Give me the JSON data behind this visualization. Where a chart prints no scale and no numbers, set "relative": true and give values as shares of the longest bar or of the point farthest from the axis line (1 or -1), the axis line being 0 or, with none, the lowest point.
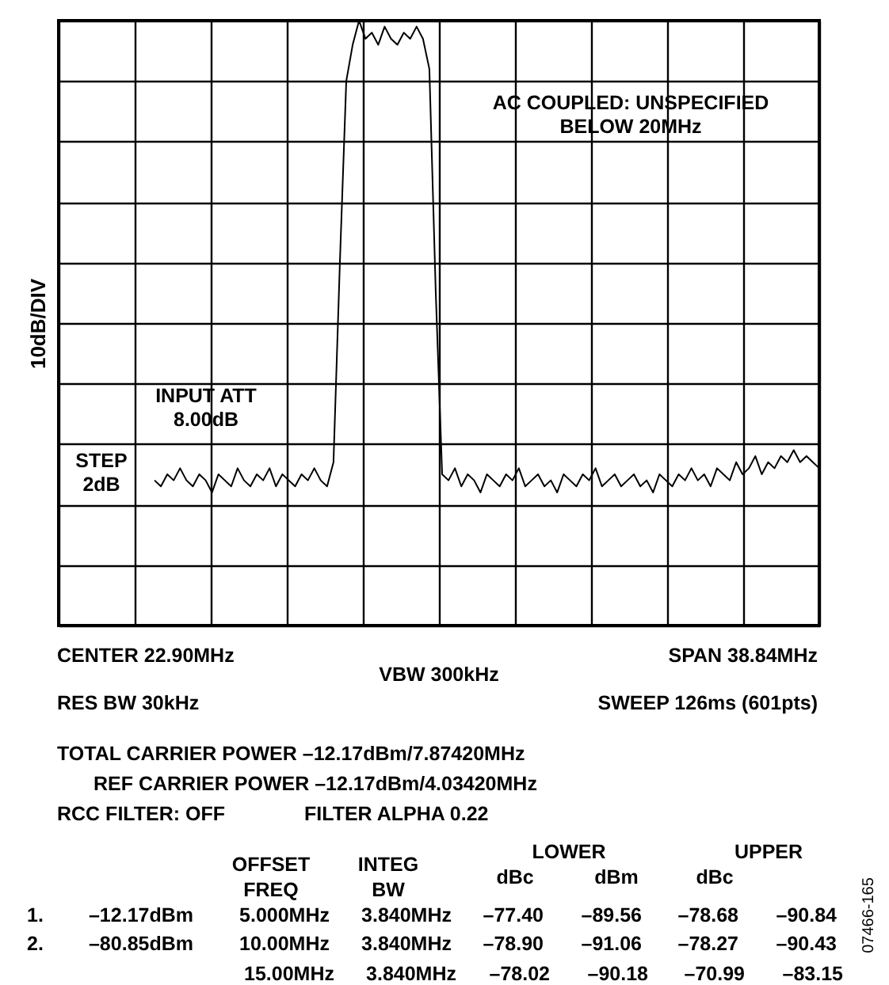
{
  "chart_data": {
    "type": "line",
    "relative": true,
    "ylabel": "10dB/DIV",
    "grid": true,
    "line_style": "solid",
    "marker": "none",
    "categories": [
      null,
      null,
      null,
      null,
      null,
      null,
      null,
      null,
      null,
      null,
      null,
      null,
      null,
      null,
      null,
      null,
      null,
      null,
      null,
      null,
      null,
      null,
      null,
      null,
      null,
      null,
      null,
      null,
      null,
      null,
      null,
      null,
      null,
      null,
      null,
      null,
      null,
      null,
      null,
      null,
      null,
      null,
      null,
      null,
      null,
      null,
      null,
      null,
      null,
      null,
      null,
      null,
      null,
      null,
      null,
      null,
      null,
      null,
      null,
      null,
      null,
      null,
      null,
      null,
      null,
      null,
      null,
      null,
      null,
      null,
      null,
      null,
      null,
      null,
      null,
      null,
      null,
      null,
      null,
      null,
      null,
      null,
      null,
      null,
      null,
      null,
      null,
      null,
      null,
      null,
      null,
      null,
      null,
      null,
      null,
      null,
      null,
      null,
      null,
      null,
      null,
      null,
      null,
      null,
      null,
      null,
      null,
      null,
      null,
      null,
      null,
      null,
      null,
      null,
      null,
      null,
      null,
      null,
      null,
      null
    ],
    "series": [
      {
        "color": "#000000",
        "values": [
          null,
          null,
          null,
          null,
          null,
          null,
          null,
          null,
          null,
          null,
          null,
          null,
          null,
          null,
          null,
          0.24,
          0.23,
          0.25,
          0.24,
          0.26,
          0.24,
          0.23,
          0.25,
          0.24,
          0.22,
          0.25,
          0.24,
          0.23,
          0.26,
          0.24,
          0.23,
          0.25,
          0.24,
          0.26,
          0.23,
          0.25,
          0.24,
          0.23,
          0.25,
          0.24,
          0.26,
          0.24,
          0.23,
          0.27,
          0.6,
          0.9,
          0.96,
          1.0,
          0.97,
          0.98,
          0.96,
          0.99,
          0.97,
          0.96,
          0.98,
          0.97,
          0.99,
          0.97,
          0.92,
          0.55,
          0.25,
          0.24,
          0.26,
          0.23,
          0.25,
          0.24,
          0.22,
          0.25,
          0.24,
          0.23,
          0.25,
          0.24,
          0.26,
          0.23,
          0.24,
          0.25,
          0.23,
          0.24,
          0.22,
          0.25,
          0.24,
          0.23,
          0.25,
          0.24,
          0.26,
          0.23,
          0.24,
          0.25,
          0.23,
          0.24,
          0.25,
          0.23,
          0.24,
          0.22,
          0.25,
          0.24,
          0.23,
          0.25,
          0.24,
          0.26,
          0.24,
          0.25,
          0.23,
          0.26,
          0.25,
          0.24,
          0.27,
          0.25,
          0.26,
          0.28,
          0.25,
          0.27,
          0.26,
          0.28,
          0.27,
          0.29,
          0.27,
          0.28,
          0.27,
          0.26
        ]
      }
    ],
    "annotations": [
      "AC COUPLED: UNSPECIFIED\nBELOW 20MHz",
      "INPUT ATT\n8.00dB",
      "STEP\n2dB",
      "CENTER 22.90MHz",
      "VBW 300kHz",
      "SPAN 38.84MHz",
      "RES BW 30kHz",
      "SWEEP 126ms (601pts)",
      "TOTAL CARRIER POWER –12.17dBm/7.87420MHz",
      "REF CARRIER POWER –12.17dBm/4.03420MHz",
      "RCC FILTER: OFF",
      "FILTER ALPHA 0.22",
      "OFFSET\nFREQ",
      "INTEG\nBW",
      "LOWER",
      "UPPER",
      "dBc",
      "dBm",
      "dBc",
      "1.",
      "–12.17dBm",
      "5.000MHz",
      "3.840MHz",
      "–77.40",
      "–89.56",
      "–78.68",
      "–90.84",
      "2.",
      "–80.85dBm",
      "10.00MHz",
      "3.840MHz",
      "–78.90",
      "–91.06",
      "–78.27",
      "–90.43",
      "15.00MHz",
      "3.840MHz",
      "–78.02",
      "–90.18",
      "–70.99",
      "–83.15",
      "07466-165"
    ]
  }
}
